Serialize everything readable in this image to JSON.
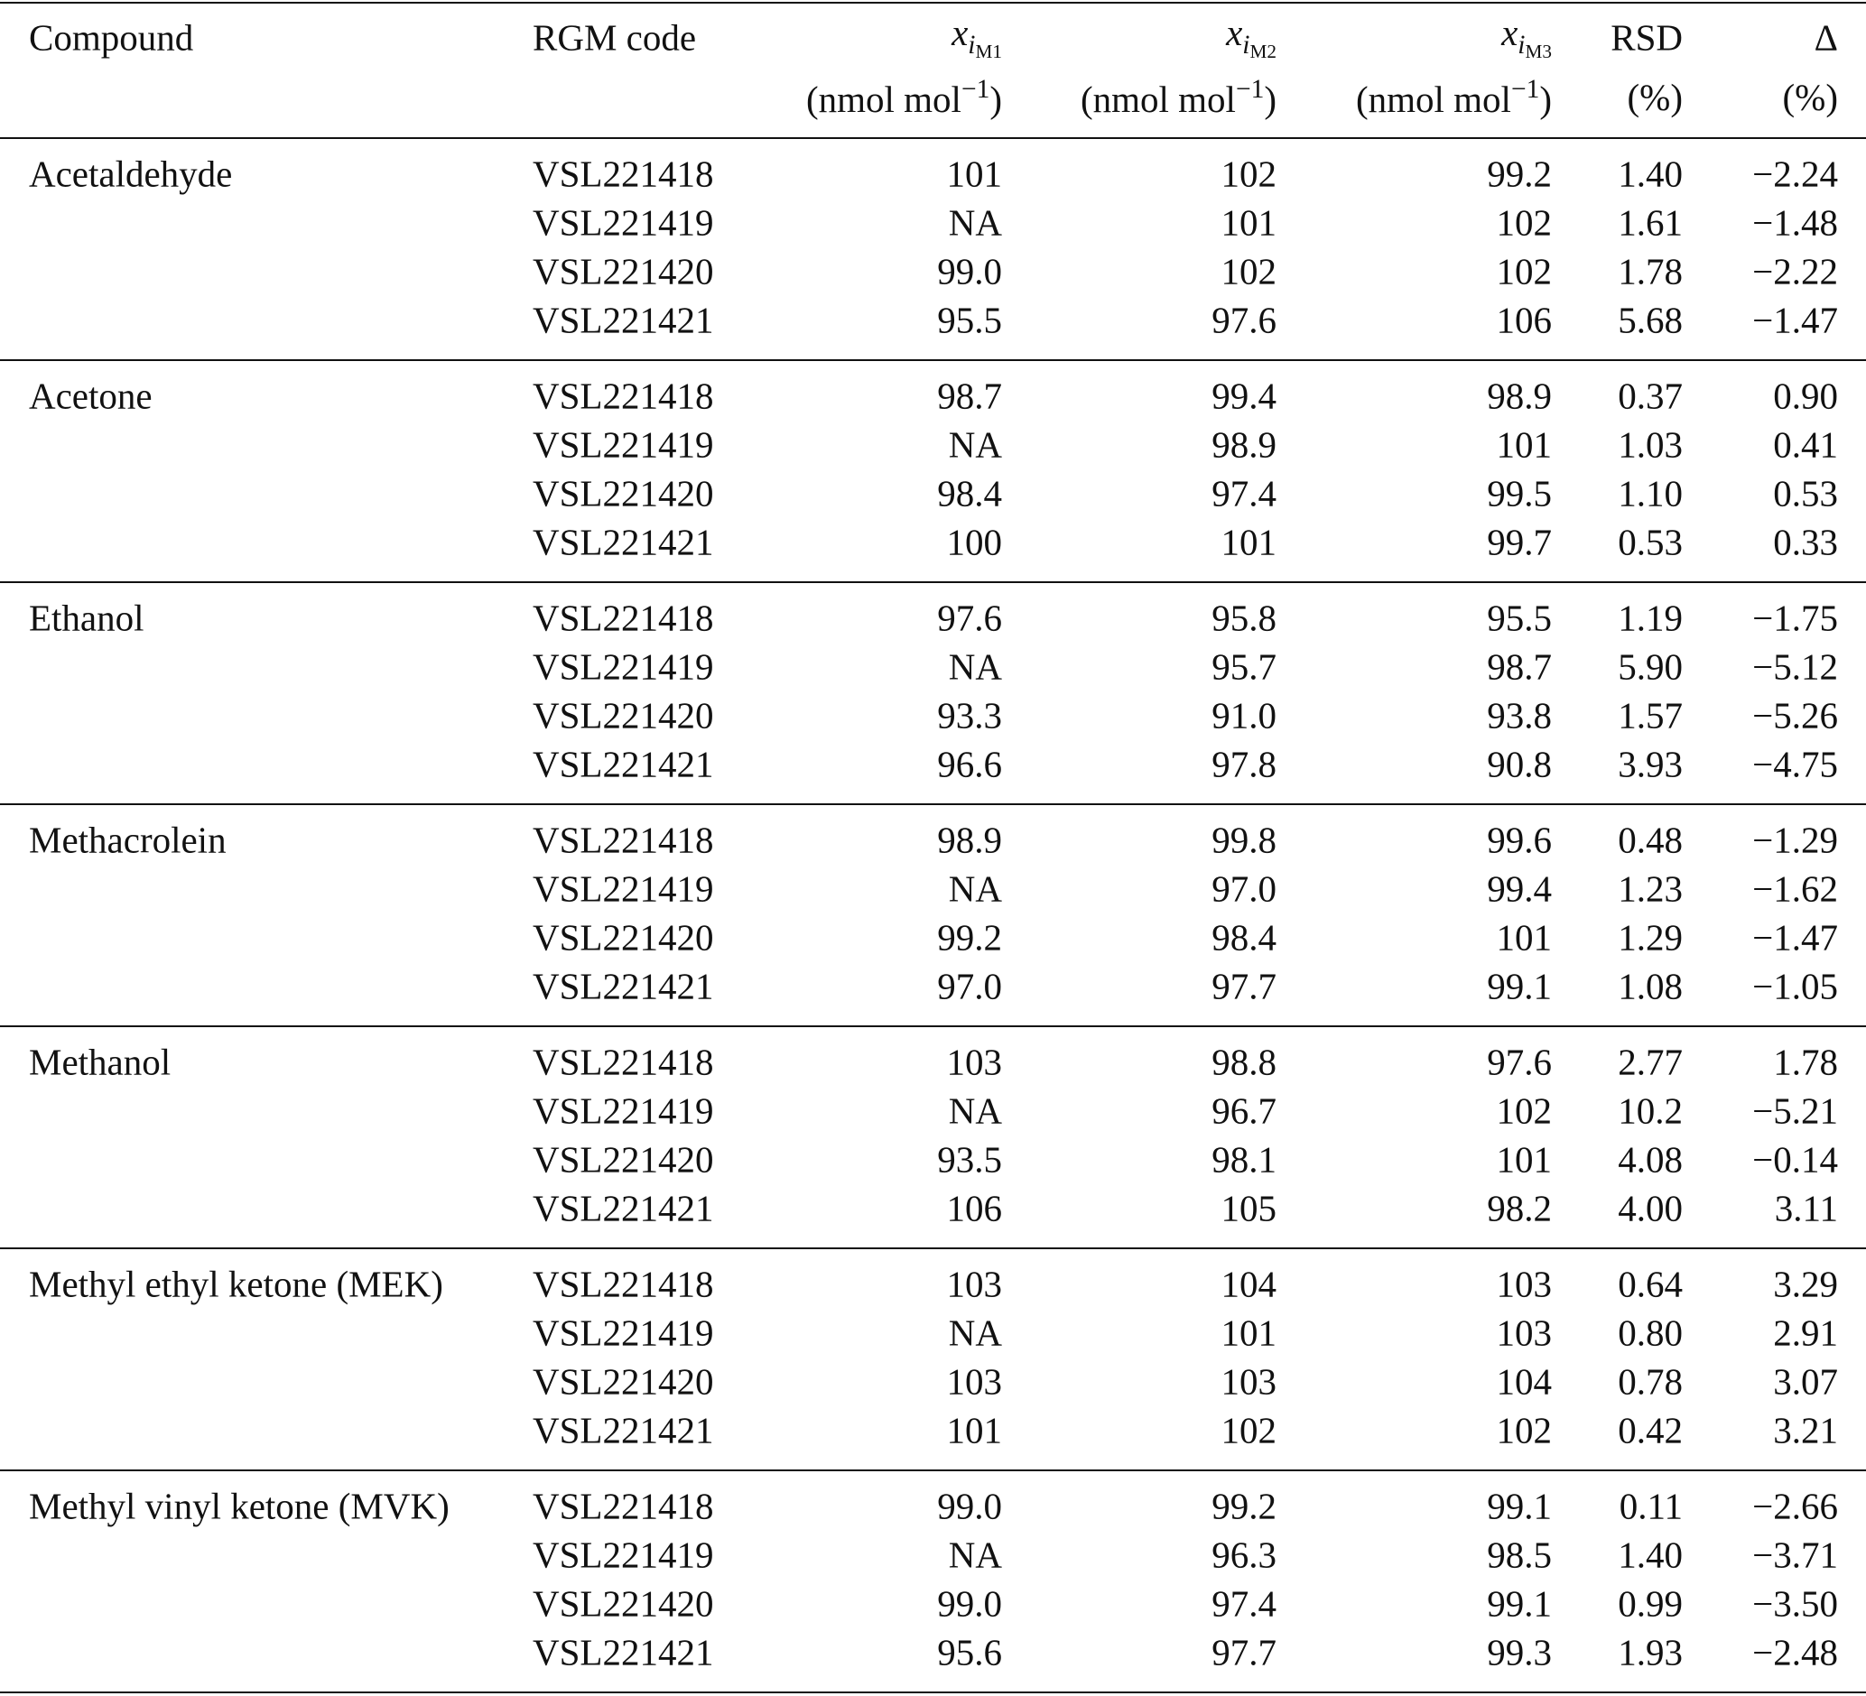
{
  "table": {
    "header": [
      {
        "text": "Compound"
      },
      {
        "text": "RGM code"
      },
      {
        "symbol": "x",
        "sub": "i",
        "subsub": "M1",
        "unit": "(nmol mol",
        "unit_exp": "−1",
        "unit_close": ")"
      },
      {
        "symbol": "x",
        "sub": "i",
        "subsub": "M2",
        "unit": "(nmol mol",
        "unit_exp": "−1",
        "unit_close": ")"
      },
      {
        "symbol": "x",
        "sub": "i",
        "subsub": "M3",
        "unit": "(nmol mol",
        "unit_exp": "−1",
        "unit_close": ")"
      },
      {
        "text": "RSD",
        "unit": "(%)"
      },
      {
        "text": "Δ",
        "unit": "(%)"
      }
    ],
    "groups": [
      {
        "compound": "Acetaldehyde",
        "rows": [
          [
            "VSL221418",
            "101",
            "102",
            "99.2",
            "1.40",
            "−2.24"
          ],
          [
            "VSL221419",
            "NA",
            "101",
            "102",
            "1.61",
            "−1.48"
          ],
          [
            "VSL221420",
            "99.0",
            "102",
            "102",
            "1.78",
            "−2.22"
          ],
          [
            "VSL221421",
            "95.5",
            "97.6",
            "106",
            "5.68",
            "−1.47"
          ]
        ]
      },
      {
        "compound": "Acetone",
        "rows": [
          [
            "VSL221418",
            "98.7",
            "99.4",
            "98.9",
            "0.37",
            "0.90"
          ],
          [
            "VSL221419",
            "NA",
            "98.9",
            "101",
            "1.03",
            "0.41"
          ],
          [
            "VSL221420",
            "98.4",
            "97.4",
            "99.5",
            "1.10",
            "0.53"
          ],
          [
            "VSL221421",
            "100",
            "101",
            "99.7",
            "0.53",
            "0.33"
          ]
        ]
      },
      {
        "compound": "Ethanol",
        "rows": [
          [
            "VSL221418",
            "97.6",
            "95.8",
            "95.5",
            "1.19",
            "−1.75"
          ],
          [
            "VSL221419",
            "NA",
            "95.7",
            "98.7",
            "5.90",
            "−5.12"
          ],
          [
            "VSL221420",
            "93.3",
            "91.0",
            "93.8",
            "1.57",
            "−5.26"
          ],
          [
            "VSL221421",
            "96.6",
            "97.8",
            "90.8",
            "3.93",
            "−4.75"
          ]
        ]
      },
      {
        "compound": "Methacrolein",
        "rows": [
          [
            "VSL221418",
            "98.9",
            "99.8",
            "99.6",
            "0.48",
            "−1.29"
          ],
          [
            "VSL221419",
            "NA",
            "97.0",
            "99.4",
            "1.23",
            "−1.62"
          ],
          [
            "VSL221420",
            "99.2",
            "98.4",
            "101",
            "1.29",
            "−1.47"
          ],
          [
            "VSL221421",
            "97.0",
            "97.7",
            "99.1",
            "1.08",
            "−1.05"
          ]
        ]
      },
      {
        "compound": "Methanol",
        "rows": [
          [
            "VSL221418",
            "103",
            "98.8",
            "97.6",
            "2.77",
            "1.78"
          ],
          [
            "VSL221419",
            "NA",
            "96.7",
            "102",
            "10.2",
            "−5.21"
          ],
          [
            "VSL221420",
            "93.5",
            "98.1",
            "101",
            "4.08",
            "−0.14"
          ],
          [
            "VSL221421",
            "106",
            "105",
            "98.2",
            "4.00",
            "3.11"
          ]
        ]
      },
      {
        "compound": "Methyl ethyl ketone (MEK)",
        "rows": [
          [
            "VSL221418",
            "103",
            "104",
            "103",
            "0.64",
            "3.29"
          ],
          [
            "VSL221419",
            "NA",
            "101",
            "103",
            "0.80",
            "2.91"
          ],
          [
            "VSL221420",
            "103",
            "103",
            "104",
            "0.78",
            "3.07"
          ],
          [
            "VSL221421",
            "101",
            "102",
            "102",
            "0.42",
            "3.21"
          ]
        ]
      },
      {
        "compound": "Methyl vinyl ketone (MVK)",
        "rows": [
          [
            "VSL221418",
            "99.0",
            "99.2",
            "99.1",
            "0.11",
            "−2.66"
          ],
          [
            "VSL221419",
            "NA",
            "96.3",
            "98.5",
            "1.40",
            "−3.71"
          ],
          [
            "VSL221420",
            "99.0",
            "97.4",
            "99.1",
            "0.99",
            "−3.50"
          ],
          [
            "VSL221421",
            "95.6",
            "97.7",
            "99.3",
            "1.93",
            "−2.48"
          ]
        ]
      }
    ]
  }
}
